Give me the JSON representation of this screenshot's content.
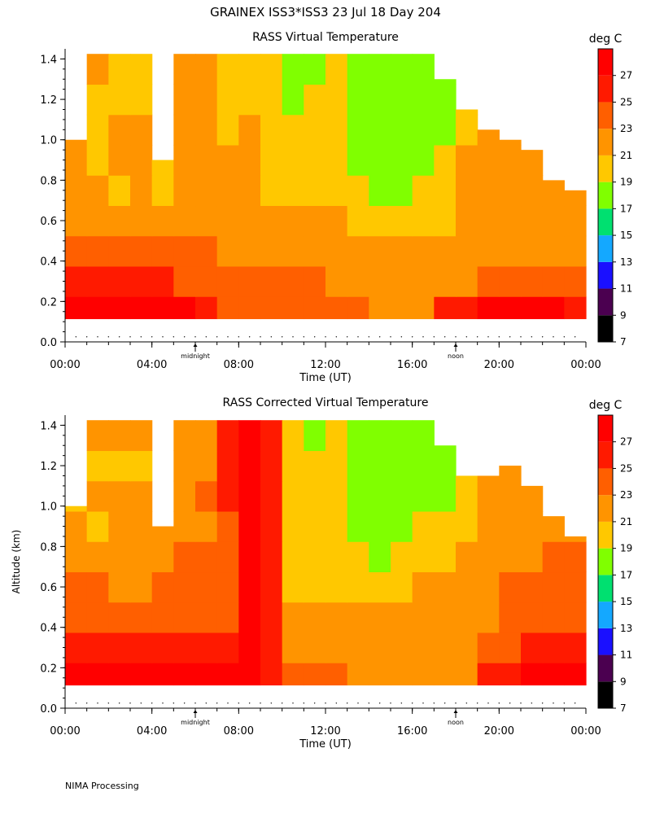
{
  "header": {
    "title": "GRAINEX ISS3*ISS3  23 Jul 18 Day 204"
  },
  "footer": {
    "note": "NIMA Processing"
  },
  "colors": {
    "c7": "#000000",
    "c9": "#4b0050",
    "c11": "#1a10ff",
    "c13": "#14a8ff",
    "c15": "#00e070",
    "c17": "#80ff00",
    "c19": "#ffc800",
    "c21": "#ff9400",
    "c23": "#ff5f00",
    "c25": "#ff1a00",
    "c27": "#ff0000"
  },
  "chart_data": [
    {
      "type": "heatmap",
      "title": "RASS Virtual Temperature",
      "xlabel": "Time (UT)",
      "ylabel": "",
      "colorbar_label": "deg C",
      "colorbar_levels": [
        7,
        9,
        11,
        13,
        15,
        17,
        19,
        21,
        23,
        25,
        27,
        29
      ],
      "colorbar_tick_labels": [
        "7",
        "9",
        "11",
        "13",
        "15",
        "17",
        "19",
        "21",
        "23",
        "25",
        "27"
      ],
      "x_tick_labels": [
        "00:00",
        "04:00",
        "08:00",
        "12:00",
        "16:00",
        "20:00",
        "00:00"
      ],
      "x_markers": [
        {
          "label": "midnight",
          "hour": 6
        },
        {
          "label": "noon",
          "hour": 18
        }
      ],
      "y_tick_labels": [
        "0.0",
        "0.2",
        "0.4",
        "0.6",
        "0.8",
        "1.0",
        "1.2",
        "1.4"
      ],
      "xlim": [
        0,
        24
      ],
      "ylim": [
        0,
        1.45
      ],
      "hours": [
        0.5,
        1.5,
        2.5,
        3.5,
        4.5,
        5.5,
        6.5,
        7.5,
        8.5,
        9.5,
        10.5,
        11.5,
        12.5,
        13.5,
        14.5,
        15.5,
        16.5,
        17.5,
        18.5,
        19.5,
        20.5,
        21.5,
        22.5,
        23.5
      ],
      "top_km": [
        1.0,
        1.45,
        1.45,
        1.45,
        0.9,
        1.45,
        1.45,
        1.45,
        1.45,
        1.45,
        1.45,
        1.45,
        1.45,
        1.45,
        1.45,
        1.45,
        1.45,
        1.3,
        1.15,
        1.05,
        1.0,
        0.95,
        0.8,
        0.75
      ],
      "heights_km": [
        0.15,
        0.3,
        0.45,
        0.6,
        0.75,
        0.9,
        1.05,
        1.2,
        1.35
      ],
      "temperature_c": [
        [
          27,
          27,
          27,
          27,
          27,
          27,
          26,
          24,
          24,
          24,
          24,
          24,
          24,
          24,
          22,
          22,
          22,
          25,
          25,
          27,
          27,
          27,
          27,
          26
        ],
        [
          25,
          25,
          25,
          25,
          25,
          24,
          24,
          24,
          24,
          24,
          24,
          23,
          22,
          22,
          22,
          22,
          22,
          22,
          22,
          24,
          24,
          24,
          24,
          24
        ],
        [
          23,
          23,
          23,
          23,
          23,
          23,
          23,
          22,
          22,
          22,
          22,
          22,
          21,
          21,
          21,
          21,
          21,
          21,
          22,
          22,
          22,
          22,
          22,
          22
        ],
        [
          22,
          22,
          22,
          22,
          22,
          22,
          22,
          22,
          22,
          21,
          21,
          22,
          21,
          20,
          20,
          20,
          20,
          20,
          21,
          22,
          22,
          22,
          22,
          22
        ],
        [
          21,
          21,
          20,
          21,
          20,
          21,
          21,
          21,
          21,
          20,
          20,
          20,
          20,
          19,
          18,
          18,
          19,
          20,
          21,
          21,
          21,
          21,
          21,
          21
        ],
        [
          21,
          20,
          21,
          21,
          20,
          21,
          21,
          21,
          21,
          20,
          20,
          20,
          19,
          18,
          17,
          17,
          18,
          19,
          21,
          21,
          21,
          21,
          21,
          21
        ],
        [
          21,
          19,
          21,
          21,
          21,
          21,
          21,
          20,
          21,
          20,
          20,
          20,
          19,
          17,
          17,
          17,
          17,
          18,
          19,
          21,
          21,
          21,
          21,
          21
        ],
        [
          21,
          20,
          20,
          20,
          21,
          21,
          21,
          20,
          20,
          19,
          18,
          19,
          19,
          17,
          17,
          17,
          17,
          18,
          19,
          21,
          21,
          21,
          21,
          21
        ],
        [
          22,
          22,
          20,
          20,
          21,
          21,
          21,
          20,
          20,
          19,
          18,
          18,
          19,
          17,
          17,
          17,
          17,
          18,
          19,
          21,
          21,
          21,
          21,
          21
        ]
      ]
    },
    {
      "type": "heatmap",
      "title": "RASS Corrected Virtual Temperature",
      "xlabel": "Time (UT)",
      "ylabel": "Altitude (km)",
      "colorbar_label": "deg C",
      "colorbar_levels": [
        7,
        9,
        11,
        13,
        15,
        17,
        19,
        21,
        23,
        25,
        27,
        29
      ],
      "colorbar_tick_labels": [
        "7",
        "9",
        "11",
        "13",
        "15",
        "17",
        "19",
        "21",
        "23",
        "25",
        "27"
      ],
      "x_tick_labels": [
        "00:00",
        "04:00",
        "08:00",
        "12:00",
        "16:00",
        "20:00",
        "00:00"
      ],
      "x_markers": [
        {
          "label": "midnight",
          "hour": 6
        },
        {
          "label": "noon",
          "hour": 18
        }
      ],
      "y_tick_labels": [
        "0.0",
        "0.2",
        "0.4",
        "0.6",
        "0.8",
        "1.0",
        "1.2",
        "1.4"
      ],
      "xlim": [
        0,
        24
      ],
      "ylim": [
        0,
        1.45
      ],
      "hours": [
        0.5,
        1.5,
        2.5,
        3.5,
        4.5,
        5.5,
        6.5,
        7.5,
        8.5,
        9.5,
        10.5,
        11.5,
        12.5,
        13.5,
        14.5,
        15.5,
        16.5,
        17.5,
        18.5,
        19.5,
        20.5,
        21.5,
        22.5,
        23.5
      ],
      "top_km": [
        1.0,
        1.45,
        1.45,
        1.45,
        0.9,
        1.45,
        1.45,
        1.45,
        1.45,
        1.45,
        1.45,
        1.45,
        1.45,
        1.45,
        1.45,
        1.45,
        1.45,
        1.3,
        1.15,
        1.15,
        1.2,
        1.1,
        0.95,
        0.85
      ],
      "heights_km": [
        0.15,
        0.3,
        0.45,
        0.6,
        0.75,
        0.9,
        1.05,
        1.2,
        1.35
      ],
      "temperature_c": [
        [
          27,
          27,
          27,
          27,
          27,
          27,
          27,
          27,
          27,
          25,
          23,
          23,
          23,
          22,
          22,
          22,
          22,
          22,
          22,
          26,
          26,
          27,
          27,
          27
        ],
        [
          25,
          25,
          25,
          25,
          25,
          25,
          25,
          26,
          27,
          25,
          22,
          22,
          22,
          22,
          22,
          22,
          22,
          22,
          22,
          24,
          24,
          26,
          26,
          26
        ],
        [
          23,
          24,
          23,
          23,
          23,
          24,
          23,
          23,
          27,
          25,
          21,
          21,
          21,
          21,
          21,
          21,
          21,
          21,
          22,
          22,
          23,
          23,
          23,
          23
        ],
        [
          23,
          23,
          22,
          22,
          23,
          23,
          23,
          23,
          27,
          25,
          20,
          20,
          20,
          19,
          19,
          20,
          21,
          21,
          21,
          22,
          23,
          23,
          23,
          23
        ],
        [
          21,
          21,
          21,
          21,
          21,
          23,
          23,
          23,
          27,
          25,
          20,
          20,
          19,
          19,
          18,
          19,
          20,
          20,
          21,
          21,
          22,
          22,
          23,
          23
        ],
        [
          21,
          20,
          21,
          21,
          21,
          21,
          21,
          23,
          27,
          25,
          20,
          19,
          19,
          18,
          18,
          18,
          19,
          19,
          20,
          21,
          21,
          21,
          21,
          21
        ],
        [
          20,
          21,
          21,
          21,
          21,
          21,
          23,
          26,
          27,
          25,
          20,
          19,
          19,
          17,
          17,
          17,
          17,
          18,
          20,
          21,
          21,
          21,
          21,
          21
        ],
        [
          19,
          20,
          20,
          20,
          21,
          21,
          22,
          26,
          27,
          25,
          20,
          19,
          19,
          17,
          17,
          17,
          17,
          18,
          20,
          21,
          22,
          22,
          22,
          21
        ],
        [
          20,
          21,
          21,
          21,
          21,
          21,
          22,
          26,
          27,
          25,
          20,
          18,
          19,
          17,
          17,
          17,
          17,
          18,
          20,
          21,
          22,
          22,
          22,
          21
        ]
      ]
    }
  ]
}
